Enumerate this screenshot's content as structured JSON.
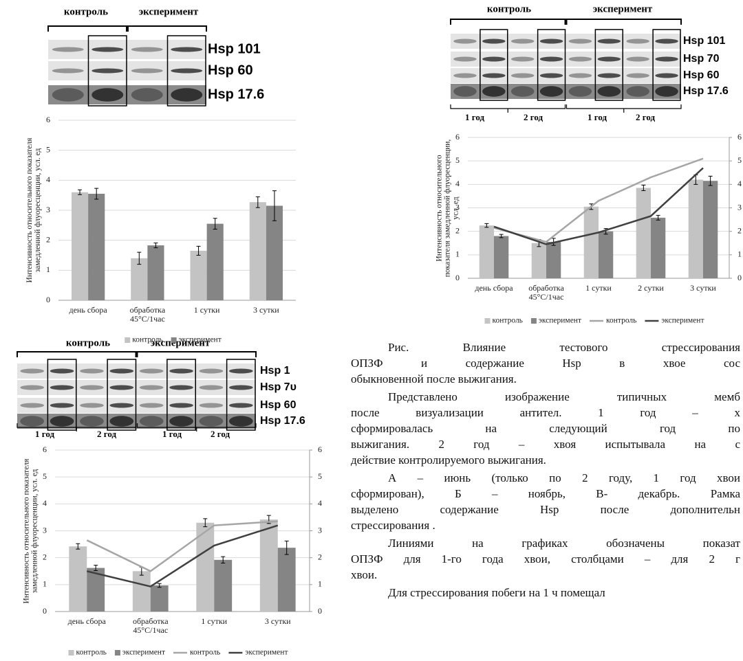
{
  "blots": [
    {
      "groups": [
        "контроль",
        "эксперимент"
      ],
      "proteins": [
        "Hsp 101",
        "Hsp 60",
        "Hsp 17.6"
      ]
    },
    {
      "groups": [
        "контроль",
        "эксперимент"
      ],
      "proteins": [
        "Hsp 101",
        "Hsp 70",
        "Hsp 60",
        "Hsp 17.6"
      ],
      "years": [
        "1 год",
        "2 год",
        "1 год",
        "2 год"
      ]
    },
    {
      "groups": [
        "контроль",
        "эксперимент"
      ],
      "proteins": [
        "Hsp 1",
        "Hsp 7υ",
        "Hsp 60",
        "Hsp 17.6"
      ],
      "years": [
        "1 год",
        "2 год",
        "1 год",
        "2 год"
      ]
    }
  ],
  "chart_data": [
    {
      "type": "bar",
      "y_label": "Интенсивность относительного показателя замедленной флуоресценции, усл. ед",
      "categories": [
        "день сбора",
        "обработка 45°C/1час",
        "1 сутки",
        "3 сутки"
      ],
      "ylim": [
        0,
        6
      ],
      "yticks": [
        0,
        1,
        2,
        3,
        4,
        5,
        6
      ],
      "grid": true,
      "series": [
        {
          "name": "контроль",
          "color": "#c3c3c3",
          "values": [
            3.6,
            1.4,
            1.65,
            3.27
          ],
          "errors": [
            0.08,
            0.2,
            0.15,
            0.18
          ]
        },
        {
          "name": "эксперимент",
          "color": "#858585",
          "values": [
            3.55,
            1.83,
            2.55,
            3.15
          ],
          "errors": [
            0.18,
            0.08,
            0.18,
            0.5
          ]
        }
      ]
    },
    {
      "type": "combo",
      "y_label": "Интенсивность относительного показателя замедленной флуоресценции, усл. ед",
      "categories": [
        "день сбора",
        "обработка 45°C/1час",
        "1 сутки",
        "2 сутки",
        "3 сутки"
      ],
      "ylim": [
        0,
        6
      ],
      "yticks": [
        0,
        1,
        2,
        3,
        4,
        5,
        6
      ],
      "y2lim": [
        0,
        6
      ],
      "y2ticks": [
        0,
        1,
        2,
        3,
        4,
        5,
        6
      ],
      "grid": true,
      "series": [
        {
          "name": "контроль",
          "color": "#c3c3c3",
          "kind": "bar",
          "values": [
            2.25,
            1.5,
            3.05,
            3.85,
            4.2
          ],
          "errors": [
            0.08,
            0.15,
            0.12,
            0.12,
            0.2
          ]
        },
        {
          "name": "эксперимент",
          "color": "#858585",
          "kind": "bar",
          "values": [
            1.8,
            1.55,
            2.0,
            2.58,
            4.15
          ],
          "errors": [
            0.07,
            0.15,
            0.12,
            0.1,
            0.2
          ]
        },
        {
          "name": "контроль",
          "color": "#a6a6a6",
          "kind": "line",
          "axis": "y2",
          "values": [
            2.15,
            1.55,
            3.3,
            4.3,
            5.1
          ]
        },
        {
          "name": "эксперимент",
          "color": "#404040",
          "kind": "line",
          "axis": "y2",
          "values": [
            2.2,
            1.45,
            1.95,
            2.65,
            4.7
          ]
        }
      ]
    },
    {
      "type": "combo",
      "y_label": "Интенсивность относительного показателя замедленной флуоресценции, усл. ед",
      "categories": [
        "день сбора",
        "обработка 45°C/1час",
        "1 сутки",
        "3 сутки"
      ],
      "ylim": [
        0,
        6
      ],
      "yticks": [
        0,
        1,
        2,
        3,
        4,
        5,
        6
      ],
      "y2lim": [
        0,
        6
      ],
      "y2ticks": [
        0,
        1,
        2,
        3,
        4,
        5,
        6
      ],
      "grid": true,
      "series": [
        {
          "name": "контроль",
          "color": "#c3c3c3",
          "kind": "bar",
          "values": [
            2.42,
            1.5,
            3.3,
            3.42
          ],
          "errors": [
            0.1,
            0.15,
            0.15,
            0.15
          ]
        },
        {
          "name": "эксперимент",
          "color": "#858585",
          "kind": "bar",
          "values": [
            1.62,
            0.97,
            1.92,
            2.37
          ],
          "errors": [
            0.1,
            0.07,
            0.12,
            0.25
          ]
        },
        {
          "name": "контроль",
          "color": "#a6a6a6",
          "kind": "line",
          "axis": "y2",
          "values": [
            2.65,
            1.5,
            3.2,
            3.35
          ]
        },
        {
          "name": "эксперимент",
          "color": "#404040",
          "kind": "line",
          "axis": "y2",
          "values": [
            1.5,
            0.93,
            2.45,
            3.2
          ]
        }
      ]
    }
  ],
  "text": {
    "paragraphs": [
      [
        "Рис. Влияние тестового стрессирования",
        "ОПЗФ и содержание Hsp в хвое сос",
        "обыкновенной после выжигания."
      ],
      [
        "Представлено изображение типичных мемб",
        "после визуализации антител. 1 год – х",
        "сформировалась на следующий год по",
        "выжигания. 2 год – хвоя испытывала на с",
        "действие контролируемого выжигания."
      ],
      [
        "А – июнь (только по 2 году, 1 год хвои",
        "сформирован), Б – ноябрь, В- декабрь. Рамка",
        "выделено содержание Hsp после дополнительн",
        "стрессирования ."
      ],
      [
        "Линиями на графиках обозначены показат",
        "ОПЗФ для 1-го года хвои, столбцами – для 2 г",
        "хвои."
      ],
      [
        "Для стрессирования побеги на 1 ч помещал"
      ]
    ]
  }
}
